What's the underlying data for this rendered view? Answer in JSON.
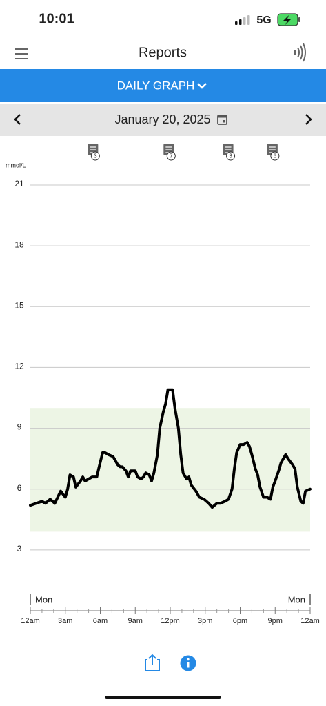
{
  "status_bar": {
    "time": "10:01",
    "network": "5G"
  },
  "header": {
    "title": "Reports"
  },
  "view_selector": "DAILY GRAPH",
  "date": "January 20, 2025",
  "chart_data": {
    "type": "line",
    "y_label": "mmol/L",
    "color": "#000000",
    "x": [
      0,
      0.5,
      1,
      1.3,
      1.7,
      2.1,
      2.6,
      3,
      3.2,
      3.4,
      3.7,
      3.9,
      4.3,
      4.5,
      4.7,
      5,
      5.3,
      5.7,
      5.9,
      6.2,
      6.4,
      6.7,
      7.1,
      7.5,
      7.7,
      7.9,
      8.2,
      8.4,
      8.6,
      9,
      9.2,
      9.5,
      9.7,
      9.9,
      10.2,
      10.4,
      10.6,
      10.9,
      11.1,
      11.4,
      11.6,
      11.8,
      12.2,
      12.4,
      12.7,
      12.9,
      13.1,
      13.4,
      13.6,
      13.8,
      14.2,
      14.5,
      14.9,
      15.3,
      15.6,
      16,
      16.3,
      16.7,
      17,
      17.3,
      17.5,
      17.7,
      18,
      18.3,
      18.6,
      18.8,
      19,
      19.3,
      19.5,
      19.7,
      20,
      20.3,
      20.6,
      20.8,
      21,
      21.3,
      21.5,
      21.9,
      22.1,
      22.5,
      22.7,
      22.9,
      23.2,
      23.4,
      23.6,
      24
    ],
    "values": [
      5.2,
      5.3,
      5.4,
      5.3,
      5.5,
      5.3,
      5.9,
      5.6,
      6,
      6.7,
      6.6,
      6.1,
      6.4,
      6.6,
      6.4,
      6.5,
      6.6,
      6.6,
      7.1,
      7.8,
      7.8,
      7.7,
      7.6,
      7.2,
      7.1,
      7.1,
      6.9,
      6.6,
      6.9,
      6.9,
      6.6,
      6.5,
      6.6,
      6.8,
      6.7,
      6.4,
      6.8,
      7.7,
      9,
      9.8,
      10.2,
      10.9,
      10.9,
      10,
      9,
      7.7,
      6.8,
      6.5,
      6.6,
      6.2,
      5.9,
      5.6,
      5.5,
      5.3,
      5.1,
      5.3,
      5.3,
      5.4,
      5.5,
      6,
      7,
      7.8,
      8.2,
      8.2,
      8.3,
      8.1,
      7.7,
      7,
      6.7,
      6.1,
      5.6,
      5.6,
      5.5,
      6.1,
      6.4,
      6.9,
      7.3,
      7.7,
      7.5,
      7.2,
      7,
      6.1,
      5.4,
      5.3,
      5.9,
      6
    ],
    "target_range": [
      3.9,
      10
    ],
    "target_color": "#edf5e5",
    "xlim": [
      0,
      24
    ],
    "ylim": [
      0,
      21
    ],
    "yticks": [
      3,
      6,
      9,
      12,
      15,
      18,
      21
    ],
    "grid": true,
    "xticks": [
      {
        "value": 0,
        "label": "12am"
      },
      {
        "value": 3,
        "label": "3am"
      },
      {
        "value": 6,
        "label": "6am"
      },
      {
        "value": 9,
        "label": "9am"
      },
      {
        "value": 12,
        "label": "12pm"
      },
      {
        "value": 15,
        "label": "3pm"
      },
      {
        "value": 18,
        "label": "6pm"
      },
      {
        "value": 21,
        "label": "9pm"
      },
      {
        "value": 24,
        "label": "12am"
      }
    ],
    "xminorticks": [
      1,
      2,
      4,
      5,
      7,
      8,
      10,
      11,
      13,
      14,
      16,
      17,
      19,
      20,
      22,
      23
    ],
    "day_labels": [
      "Mon",
      "Mon"
    ],
    "notes": {
      "x": [
        5.4,
        11.9,
        17,
        20.8
      ],
      "counts": [
        3,
        7,
        3,
        6
      ]
    }
  }
}
